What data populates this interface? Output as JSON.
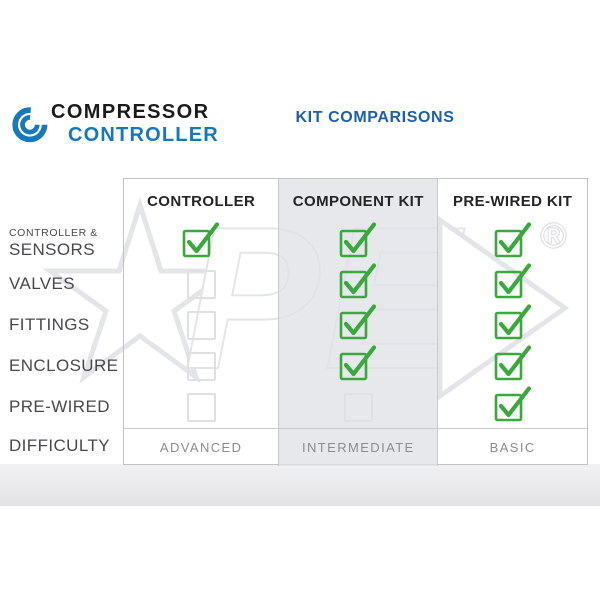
{
  "logo": {
    "line1": "COMPRESSOR",
    "line2": "CONTROLLER",
    "icon": "concentric-arcs-logo-icon",
    "line1_color": "#1b1b1b",
    "line2_color": "#1777bd"
  },
  "title": {
    "text": "KIT COMPARISONS",
    "color": "#1e5faa"
  },
  "watermark": {
    "registered_symbol": "®",
    "letters": [
      "P",
      "E"
    ]
  },
  "table": {
    "columns": [
      {
        "label": "CONTROLLER",
        "shaded": false
      },
      {
        "label": "COMPONENT KIT",
        "shaded": true
      },
      {
        "label": "PRE-WIRED KIT",
        "shaded": false
      }
    ],
    "rows": [
      {
        "label_small": "CONTROLLER &",
        "label": "SENSORS",
        "cells": [
          "checked",
          "checked",
          "checked"
        ]
      },
      {
        "label": "VALVES",
        "cells": [
          "unchecked",
          "checked",
          "checked"
        ]
      },
      {
        "label": "FITTINGS",
        "cells": [
          "unchecked",
          "checked",
          "checked"
        ]
      },
      {
        "label": "ENCLOSURE",
        "cells": [
          "unchecked",
          "checked",
          "checked"
        ]
      },
      {
        "label": "PRE-WIRED",
        "cells": [
          "unchecked",
          "unchecked",
          "checked"
        ]
      }
    ],
    "difficulty_row": {
      "label": "DIFFICULTY",
      "values": [
        "ADVANCED",
        "INTERMEDIATE",
        "BASIC"
      ]
    }
  },
  "chart_data": {
    "type": "table",
    "title": "KIT COMPARISONS",
    "columns": [
      "CONTROLLER",
      "COMPONENT KIT",
      "PRE-WIRED KIT"
    ],
    "row_labels": [
      "CONTROLLER & SENSORS",
      "VALVES",
      "FITTINGS",
      "ENCLOSURE",
      "PRE-WIRED",
      "DIFFICULTY"
    ],
    "matrix": [
      [
        true,
        true,
        true
      ],
      [
        false,
        true,
        true
      ],
      [
        false,
        true,
        true
      ],
      [
        false,
        true,
        true
      ],
      [
        false,
        false,
        true
      ],
      [
        "ADVANCED",
        "INTERMEDIATE",
        "BASIC"
      ]
    ]
  },
  "colors": {
    "check_green": "#3aa93c",
    "empty_box_border": "#e0e0e3",
    "table_border": "#c6c7c9",
    "shaded_column": "rgba(223,226,231,0.78)",
    "label_text": "#48494b",
    "difficulty_text": "#8b8c8e"
  }
}
